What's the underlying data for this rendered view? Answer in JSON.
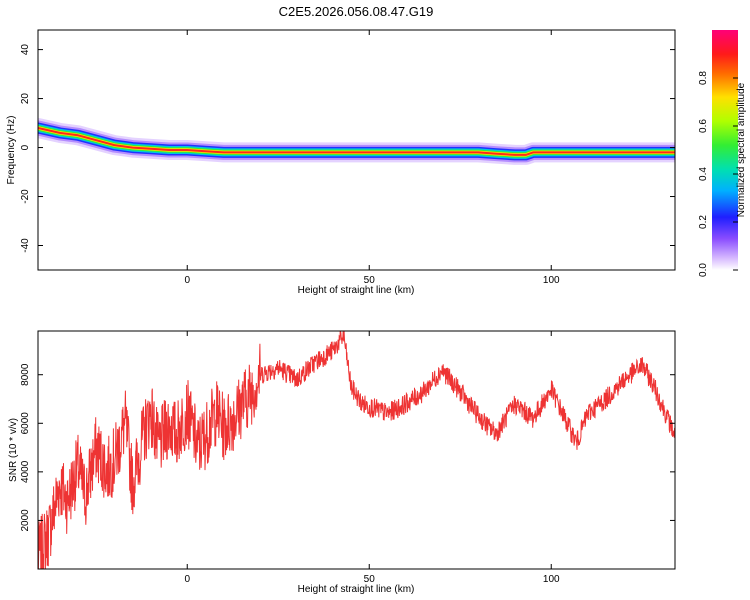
{
  "title": "C2E5.2026.056.08.47.G19",
  "chart_data": [
    {
      "type": "heatmap",
      "xlabel": "Height of straight line (km)",
      "ylabel": "Frequency (Hz)",
      "xlim": [
        -41,
        134
      ],
      "ylim": [
        -50,
        48
      ],
      "x_ticks": [
        0,
        50,
        100
      ],
      "y_ticks": [
        -40,
        -20,
        0,
        20,
        40
      ],
      "colorbar": {
        "label": "Normalized spectral amplitude",
        "range": [
          0.0,
          1.0
        ],
        "ticks": [
          "0.0",
          "0.2",
          "0.4",
          "0.6",
          "0.8"
        ]
      },
      "ridge": {
        "x": [
          -41,
          -35,
          -30,
          -25,
          -20,
          -15,
          -10,
          -5,
          0,
          5,
          10,
          20,
          30,
          40,
          50,
          60,
          70,
          80,
          85,
          90,
          93,
          95,
          100,
          110,
          120,
          134
        ],
        "y": [
          8,
          6,
          5,
          3,
          1,
          0,
          -0.5,
          -1,
          -1,
          -1.5,
          -2,
          -2,
          -2,
          -2,
          -2,
          -2,
          -2,
          -2,
          -2.5,
          -3,
          -3,
          -2,
          -2,
          -2,
          -2,
          -2
        ]
      },
      "grid": false
    },
    {
      "type": "line",
      "xlabel": "Height of straight line (km)",
      "ylabel": "SNR (10 * v/v)",
      "xlim": [
        -41,
        134
      ],
      "ylim": [
        0,
        9800
      ],
      "x_ticks": [
        0,
        50,
        100
      ],
      "y_ticks": [
        2000,
        4000,
        6000,
        8000
      ],
      "line_color": "#ee3333",
      "series": [
        {
          "x": [
            -41,
            -38,
            -35,
            -33,
            -30,
            -28,
            -25,
            -22,
            -20,
            -17,
            -15,
            -12,
            -10,
            -8,
            -5,
            -3,
            0,
            3,
            5,
            8,
            10,
            13,
            15,
            18,
            20,
            25,
            30,
            35,
            40,
            43,
            45,
            48,
            50,
            55,
            60,
            65,
            70,
            75,
            80,
            83,
            85,
            90,
            95,
            100,
            105,
            107,
            110,
            115,
            120,
            125,
            128,
            130,
            134
          ],
          "y": [
            500,
            1500,
            3500,
            2800,
            4200,
            3000,
            5000,
            4000,
            4500,
            6000,
            3500,
            5500,
            6500,
            5000,
            6000,
            5500,
            6500,
            5000,
            5500,
            6500,
            5800,
            6300,
            6800,
            7400,
            8000,
            8300,
            7800,
            8500,
            9000,
            9600,
            7500,
            6800,
            6700,
            6400,
            6800,
            7300,
            8200,
            7300,
            6300,
            5800,
            5600,
            6800,
            6200,
            7400,
            5800,
            5200,
            6400,
            7000,
            7800,
            8400,
            7600,
            6900,
            5500
          ]
        }
      ]
    }
  ]
}
